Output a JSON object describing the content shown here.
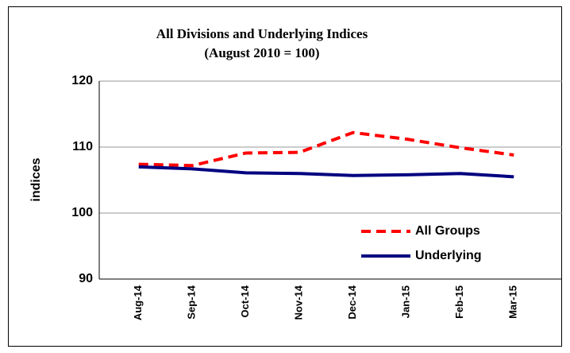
{
  "chart_data": {
    "type": "line",
    "title": "All Divisions and Underlying Indices",
    "subtitle": "(August 2010 = 100)",
    "y_label": "indices",
    "categories": [
      "Aug-14",
      "Sep-14",
      "Oct-14",
      "Nov-14",
      "Dec-14",
      "Jan-15",
      "Feb-15",
      "Mar-15"
    ],
    "series": [
      {
        "name": "All Groups",
        "color": "#ff0000",
        "dashed": true,
        "values": [
          107.4,
          107.2,
          109.1,
          109.2,
          112.2,
          111.2,
          109.9,
          108.8
        ]
      },
      {
        "name": "Underlying",
        "color": "#000080",
        "dashed": false,
        "values": [
          107.0,
          106.7,
          106.1,
          106.0,
          105.7,
          105.8,
          106.0,
          105.5
        ]
      }
    ],
    "ylim": [
      90,
      120
    ],
    "yticks": [
      90,
      100,
      110,
      120
    ],
    "grid": true,
    "legend": "lower right"
  }
}
